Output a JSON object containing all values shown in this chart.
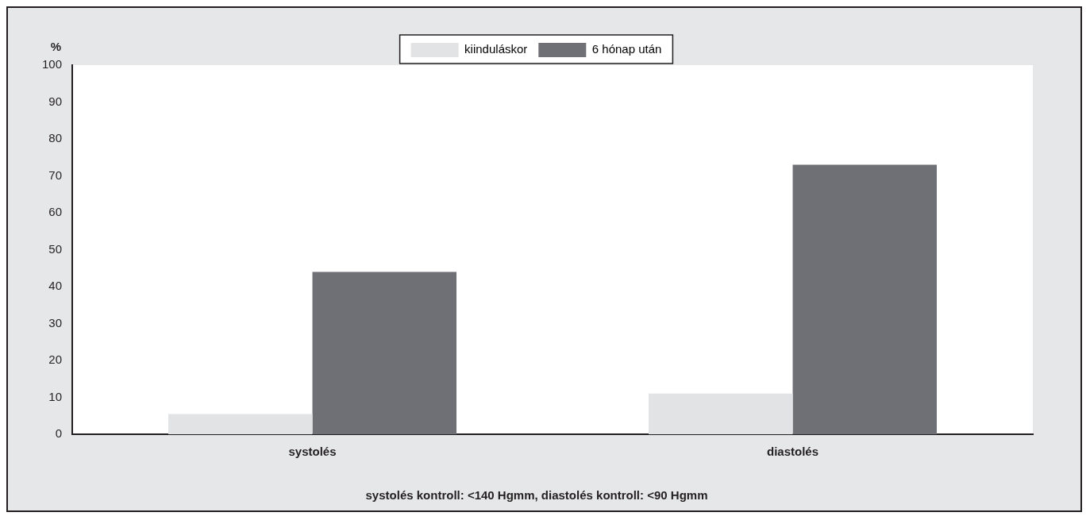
{
  "chart_data": {
    "type": "bar",
    "ylabel": "%",
    "categories": [
      "systolés",
      "diastolés"
    ],
    "series": [
      {
        "name": "kiinduláskor",
        "color": "#e2e3e5",
        "values": [
          5.5,
          11
        ]
      },
      {
        "name": "6 hónap után",
        "color": "#6e7075",
        "values": [
          44,
          73
        ]
      }
    ],
    "ylim": [
      0,
      100
    ],
    "yticks": [
      0,
      10,
      20,
      30,
      40,
      50,
      60,
      70,
      80,
      90,
      100
    ],
    "grid": false,
    "legend": "top",
    "annotations": [
      "systolés kontroll: <140 Hgmm, diastolés kontroll: <90 Hgmm"
    ]
  }
}
